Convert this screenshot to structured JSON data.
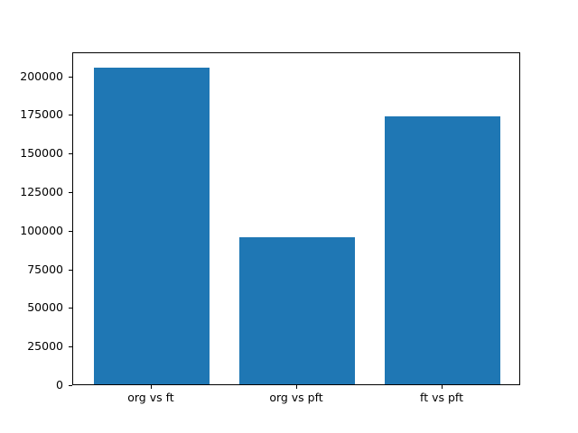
{
  "figure": {
    "background": "#ffffff"
  },
  "chart_data": {
    "type": "bar",
    "categories": [
      "org vs ft",
      "org vs pft",
      "ft vs pft"
    ],
    "values": [
      205000,
      95000,
      173500
    ],
    "title": "",
    "xlabel": "",
    "ylabel": "",
    "ylim": [
      0,
      215500
    ],
    "yticks": [
      0,
      25000,
      50000,
      75000,
      100000,
      125000,
      150000,
      175000,
      200000
    ],
    "bar_color": "#1f77b4",
    "axis_color": "#000000",
    "text_color": "#000000",
    "grid": false,
    "legend": "none",
    "bar_width_fraction": 0.8,
    "x_margin_units": 0.54
  }
}
